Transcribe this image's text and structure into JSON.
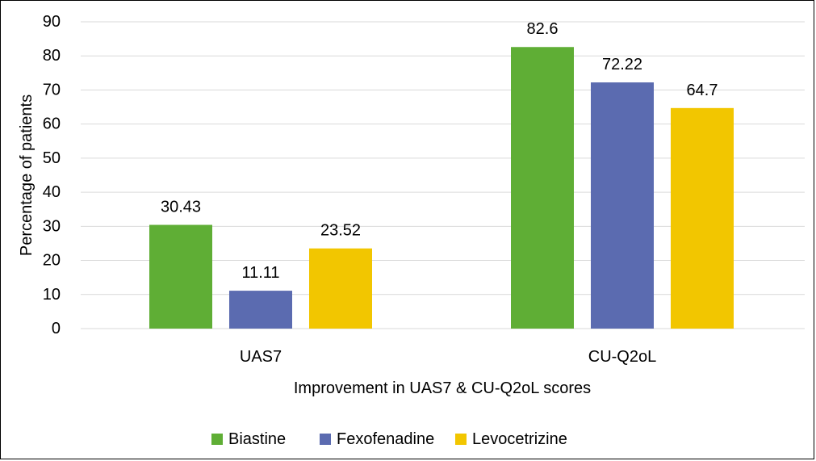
{
  "chart_data": {
    "type": "bar",
    "title": "",
    "xlabel": "Improvement in UAS7 & CU-Q2oL scores",
    "ylabel": "Percentage of patients",
    "categories": [
      "UAS7",
      "CU-Q2oL"
    ],
    "series": [
      {
        "name": "Biastine",
        "color": "#5FAE35",
        "values": [
          30.43,
          82.6
        ],
        "labels": [
          "30.43",
          "82.6"
        ]
      },
      {
        "name": "Fexofenadine",
        "color": "#5B6BB0",
        "values": [
          11.11,
          72.22
        ],
        "labels": [
          "11.11",
          "72.22"
        ]
      },
      {
        "name": "Levocetrizine",
        "color": "#F2C600",
        "values": [
          23.52,
          64.7
        ],
        "labels": [
          "23.52",
          "64.7"
        ]
      }
    ],
    "ylim": [
      0,
      90
    ],
    "yticks": [
      "0",
      "10",
      "20",
      "30",
      "40",
      "50",
      "60",
      "70",
      "80",
      "90"
    ],
    "grid": true,
    "legend_position": "bottom"
  }
}
